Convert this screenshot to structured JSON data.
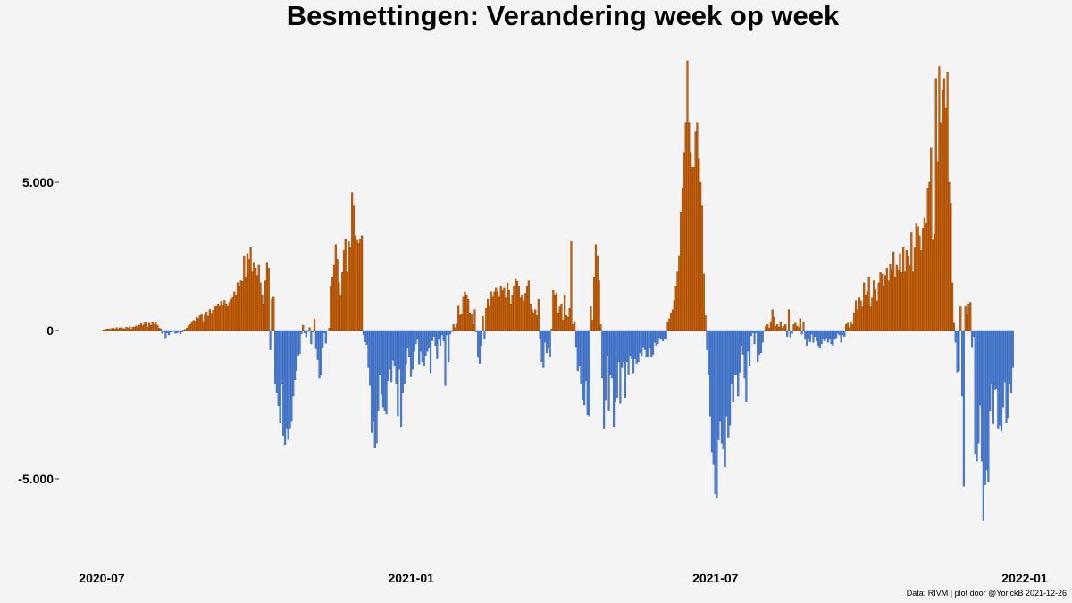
{
  "chart_data": {
    "type": "bar",
    "title": "Besmettingen: Verandering week op week",
    "caption": "Data: RIVM | plot door @YorickB  2021-12-26",
    "xlabel": "",
    "ylabel": "",
    "x_start": "2020-07-01",
    "x_end": "2021-12-25",
    "xlim": [
      "2020-06-01",
      "2022-01-01"
    ],
    "ylim": [
      -7800,
      9300
    ],
    "grid": false,
    "legend": "none",
    "colors": {
      "positive": "#c8610a",
      "negative": "#4f7fd0",
      "positive_edge": "#7a3800",
      "negative_edge": "#2d58a8"
    },
    "x_ticks": [
      {
        "value": "2020-07-01",
        "label": "2020-07"
      },
      {
        "value": "2021-01-01",
        "label": "2021-01"
      },
      {
        "value": "2021-07-01",
        "label": "2021-07"
      },
      {
        "value": "2022-01-01",
        "label": "2022-01"
      }
    ],
    "y_ticks": [
      {
        "value": 5000,
        "label": "5.000"
      },
      {
        "value": 0,
        "label": "0"
      },
      {
        "value": -5000,
        "label": "-5.000"
      }
    ],
    "values": [
      0,
      20,
      30,
      50,
      60,
      40,
      70,
      80,
      50,
      100,
      60,
      90,
      100,
      70,
      60,
      110,
      90,
      130,
      50,
      120,
      120,
      160,
      100,
      180,
      230,
      170,
      250,
      280,
      120,
      250,
      180,
      300,
      200,
      260,
      170,
      80,
      60,
      -100,
      -50,
      -250,
      -80,
      -150,
      -60,
      -40,
      -30,
      -100,
      -80,
      -40,
      -120,
      -60,
      20,
      40,
      80,
      150,
      200,
      260,
      340,
      320,
      450,
      400,
      500,
      560,
      300,
      520,
      620,
      480,
      710,
      580,
      690,
      800,
      830,
      900,
      850,
      980,
      860,
      1010,
      900,
      800,
      950,
      1050,
      1120,
      1300,
      1200,
      1600,
      1500,
      1700,
      1650,
      2500,
      1800,
      2600,
      2400,
      2800,
      2000,
      2300,
      2100,
      1850,
      2200,
      1600,
      1200,
      900,
      1700,
      2300,
      2100,
      -650,
      1050,
      1150,
      -1800,
      -2100,
      -2550,
      -3100,
      -1800,
      -3550,
      -3850,
      -3300,
      -3650,
      -3300,
      -3050,
      -2200,
      -1650,
      -1350,
      -850,
      -780,
      -120,
      180,
      -80,
      -220,
      -40,
      100,
      -450,
      -50,
      380,
      -620,
      -980,
      -1600,
      -1500,
      -580,
      -80,
      -430,
      -20,
      80,
      1500,
      1800,
      2200,
      2900,
      2400,
      1600,
      1200,
      1950,
      2700,
      3100,
      2000,
      3000,
      2800,
      4650,
      4200,
      3200,
      3050,
      2950,
      3100,
      3200,
      -150,
      -380,
      -480,
      -1250,
      -1850,
      -3450,
      -3050,
      -3950,
      -3800,
      -2700,
      -1500,
      -2150,
      -2600,
      -2700,
      -2800,
      -1700,
      -1300,
      -1750,
      -1000,
      -1200,
      -1800,
      -2900,
      -1300,
      -3250,
      -2100,
      -1800,
      -1150,
      -600,
      -900,
      -1550,
      -1300,
      -700,
      -450,
      -300,
      -1150,
      -700,
      -1050,
      -1200,
      -850,
      -700,
      -600,
      -1450,
      -350,
      -200,
      -500,
      -950,
      -300,
      -500,
      -150,
      -350,
      -1850,
      -150,
      -1050,
      -120,
      -40,
      200,
      100,
      220,
      850,
      520,
      550,
      1150,
      1300,
      1200,
      1050,
      600,
      550,
      200,
      700,
      -50,
      -900,
      -1100,
      -500,
      480,
      -300,
      750,
      1050,
      850,
      1300,
      1150,
      1300,
      1450,
      1300,
      1150,
      1500,
      1350,
      1450,
      1100,
      1600,
      1350,
      900,
      1200,
      1500,
      1750,
      1650,
      1500,
      1100,
      1200,
      1000,
      1250,
      1500,
      1700,
      900,
      700,
      600,
      700,
      500,
      1050,
      -300,
      -1050,
      -1250,
      -400,
      -750,
      -600,
      -900,
      50,
      1350,
      1200,
      1250,
      600,
      800,
      900,
      350,
      1200,
      500,
      450,
      750,
      3000,
      200,
      300,
      -550,
      -1350,
      -1200,
      -1800,
      -2350,
      -2500,
      -1700,
      -2850,
      -2900,
      800,
      350,
      1800,
      2900,
      2500,
      1700,
      200,
      -1600,
      -3300,
      -2350,
      -850,
      -2700,
      -1500,
      -1600,
      -3250,
      -2400,
      -2250,
      -1050,
      -2450,
      -1250,
      -1050,
      -2250,
      -1050,
      -1500,
      -850,
      -950,
      -1450,
      -950,
      -1100,
      -1050,
      -750,
      -850,
      -550,
      -650,
      -900,
      -900,
      -600,
      -900,
      -800,
      -400,
      -500,
      -450,
      -250,
      -300,
      -350,
      -280,
      -280,
      300,
      400,
      600,
      700,
      1000,
      1500,
      2000,
      2500,
      4000,
      4800,
      6000,
      7000,
      9100,
      7000,
      6000,
      5500,
      5500,
      6700,
      7000,
      5800,
      5000,
      4200,
      1900,
      500,
      -650,
      -1500,
      -2900,
      -4100,
      -4500,
      -5500,
      -5650,
      -3700,
      -3050,
      -3800,
      -4000,
      -4600,
      -2900,
      -3600,
      -3200,
      -1800,
      -2400,
      -1500,
      -1500,
      -2200,
      -1400,
      -500,
      -800,
      -1600,
      -2400,
      -700,
      -1200,
      -180,
      -80,
      -450,
      -80,
      -1050,
      -800,
      -750,
      -400,
      -30,
      150,
      200,
      80,
      300,
      700,
      450,
      150,
      200,
      120,
      300,
      80,
      150,
      200,
      -200,
      700,
      -220,
      -100,
      200,
      250,
      150,
      100,
      400,
      -130,
      300,
      -300,
      -500,
      -250,
      -380,
      -120,
      -400,
      -200,
      -350,
      -500,
      -600,
      -450,
      -300,
      -350,
      -250,
      -400,
      -300,
      -450,
      -500,
      -300,
      -250,
      -100,
      -150,
      -400,
      -150,
      -200,
      200,
      250,
      100,
      300,
      200,
      600,
      1000,
      700,
      1100,
      1000,
      800,
      1600,
      1200,
      1300,
      1800,
      800,
      1100,
      1700,
      1400,
      1000,
      1600,
      1950,
      1900,
      1500,
      1850,
      2100,
      1700,
      2250,
      2050,
      2650,
      1800,
      2200,
      2050,
      2600,
      1950,
      2800,
      2000,
      2700,
      2500,
      2200,
      3300,
      2000,
      2800,
      3600,
      3500,
      3200,
      2700,
      3450,
      3800,
      3600,
      4800,
      5000,
      6150,
      3050,
      3250,
      8500,
      5700,
      8900,
      7000,
      8100,
      8500,
      7500,
      8700,
      5000,
      4300,
      1600,
      250,
      -400,
      -1400,
      -1350,
      800,
      -2200,
      -5250,
      800,
      500,
      900,
      950,
      -550,
      -200,
      -4150,
      -4400,
      -3800,
      -2500,
      -4400,
      -6400,
      -5200,
      -4700,
      -5100,
      -2700,
      -1800,
      -3150,
      -2000,
      -1950,
      -3300,
      -3200,
      -3400,
      -2600,
      -1750,
      -3100,
      -2950,
      -1800,
      -2100,
      -1250
    ]
  }
}
